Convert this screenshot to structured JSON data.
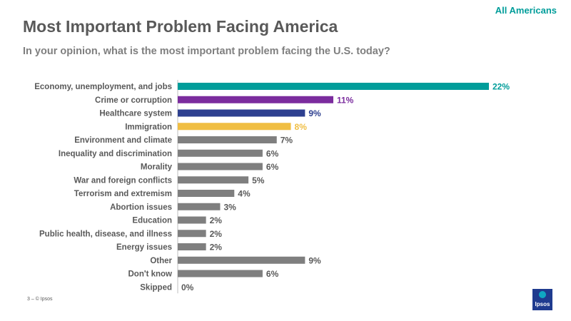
{
  "header": {
    "audience": "All Americans",
    "title": "Most Important Problem Facing America",
    "subtitle": "In your opinion, what is the most important problem facing the U.S. today?"
  },
  "footer": {
    "text": "3 ‒ © Ipsos"
  },
  "logo": {
    "text": "Ipsos"
  },
  "colors": {
    "teal": "#009D9A",
    "purple": "#7B2C9E",
    "navy": "#2E4090",
    "gold": "#F0BE43",
    "gray": "#7F7F7F"
  },
  "chart_data": {
    "type": "bar",
    "orientation": "horizontal",
    "title": "Most Important Problem Facing America",
    "xlim": [
      0,
      22
    ],
    "categories": [
      "Economy, unemployment, and jobs",
      "Crime or corruption",
      "Healthcare system",
      "Immigration",
      "Environment and climate",
      "Inequality and discrimination",
      "Morality",
      "War and foreign conflicts",
      "Terrorism and extremism",
      "Abortion issues",
      "Education",
      "Public health, disease, and illness",
      "Energy issues",
      "Other",
      "Don't know",
      "Skipped"
    ],
    "values": [
      22,
      11,
      9,
      8,
      7,
      6,
      6,
      5,
      4,
      3,
      2,
      2,
      2,
      9,
      6,
      0
    ],
    "value_labels": [
      "22%",
      "11%",
      "9%",
      "8%",
      "7%",
      "6%",
      "6%",
      "5%",
      "4%",
      "3%",
      "2%",
      "2%",
      "2%",
      "9%",
      "6%",
      "0%"
    ],
    "bar_colors": [
      "#009D9A",
      "#7B2C9E",
      "#2E4090",
      "#F0BE43",
      "#7F7F7F",
      "#7F7F7F",
      "#7F7F7F",
      "#7F7F7F",
      "#7F7F7F",
      "#7F7F7F",
      "#7F7F7F",
      "#7F7F7F",
      "#7F7F7F",
      "#7F7F7F",
      "#7F7F7F",
      "#7F7F7F"
    ],
    "label_colors": [
      "#009D9A",
      "#7B2C9E",
      "#2E4090",
      "#F0BE43",
      "#595959",
      "#595959",
      "#595959",
      "#595959",
      "#595959",
      "#595959",
      "#595959",
      "#595959",
      "#595959",
      "#595959",
      "#595959",
      "#595959"
    ]
  }
}
